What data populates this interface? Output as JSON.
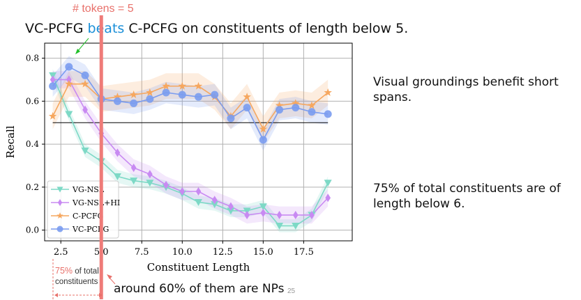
{
  "slide": {
    "headline_a": "VC-PCFG ",
    "headline_b": "beats",
    "headline_c": " C-PCFG on constituents of length below 5.",
    "tokens_note": "# tokens = 5",
    "side_note_1": "Visual groundings benefit short spans.",
    "side_note_2": "75% of total constituents are of length below 6.",
    "coverage_pct": "75%",
    "coverage_rest": " of total constituents",
    "np_note": "around 60% of them are NPs",
    "page_number": "25"
  },
  "colors": {
    "vg_nsl": "#7dd9c6",
    "vg_nsl_hi": "#c88af2",
    "c_pcfg": "#f6a75f",
    "vc_pcfg": "#7a9cf0",
    "marker_line": "#ef7b78",
    "threshold": "#000000",
    "highlight_text": "#1a8fd8",
    "arrow_green": "#22c02a",
    "annotation_red": "#e8706a"
  },
  "chart_data": {
    "type": "line",
    "xlabel": "Constituent Length",
    "ylabel": "Recall",
    "xlim": [
      1.5,
      20.5
    ],
    "ylim": [
      -0.05,
      0.87
    ],
    "xticks": [
      2.5,
      5.0,
      7.5,
      10.0,
      12.5,
      15.0,
      17.5
    ],
    "xtick_labels": [
      "2.5",
      "5.0",
      "7.5",
      "10.0",
      "12.5",
      "15.0",
      "17.5"
    ],
    "yticks": [
      0.0,
      0.2,
      0.4,
      0.6,
      0.8
    ],
    "ytick_labels": [
      "0.0",
      "0.2",
      "0.4",
      "0.6",
      "0.8"
    ],
    "grid": true,
    "legend_position": "lower-left",
    "threshold_y": 0.5,
    "x": [
      2,
      3,
      4,
      5,
      6,
      7,
      8,
      9,
      10,
      11,
      12,
      13,
      14,
      15,
      16,
      17,
      18,
      19
    ],
    "series": [
      {
        "name": "VG-NSL",
        "marker": "triangle-down",
        "color_key": "vg_nsl",
        "values": [
          0.72,
          0.54,
          0.37,
          0.32,
          0.25,
          0.23,
          0.22,
          0.2,
          0.17,
          0.13,
          0.12,
          0.09,
          0.09,
          0.11,
          0.02,
          0.02,
          0.07,
          0.22
        ],
        "band": 0.03
      },
      {
        "name": "VG-NSL+HI",
        "marker": "diamond",
        "color_key": "vg_nsl_hi",
        "values": [
          0.7,
          0.7,
          0.56,
          0.45,
          0.36,
          0.29,
          0.26,
          0.21,
          0.18,
          0.18,
          0.14,
          0.11,
          0.07,
          0.08,
          0.07,
          0.07,
          0.07,
          0.15
        ],
        "band": 0.04
      },
      {
        "name": "C-PCFG",
        "marker": "star",
        "color_key": "c_pcfg",
        "values": [
          0.53,
          0.68,
          0.68,
          0.61,
          0.62,
          0.63,
          0.64,
          0.67,
          0.67,
          0.67,
          0.62,
          0.53,
          0.62,
          0.47,
          0.58,
          0.59,
          0.58,
          0.64
        ],
        "band": 0.06
      },
      {
        "name": "VC-PCFG",
        "marker": "circle",
        "color_key": "vc_pcfg",
        "values": [
          0.67,
          0.76,
          0.72,
          0.61,
          0.6,
          0.59,
          0.61,
          0.64,
          0.63,
          0.62,
          0.63,
          0.52,
          0.57,
          0.42,
          0.56,
          0.57,
          0.55,
          0.54
        ],
        "band": 0.05
      }
    ]
  }
}
